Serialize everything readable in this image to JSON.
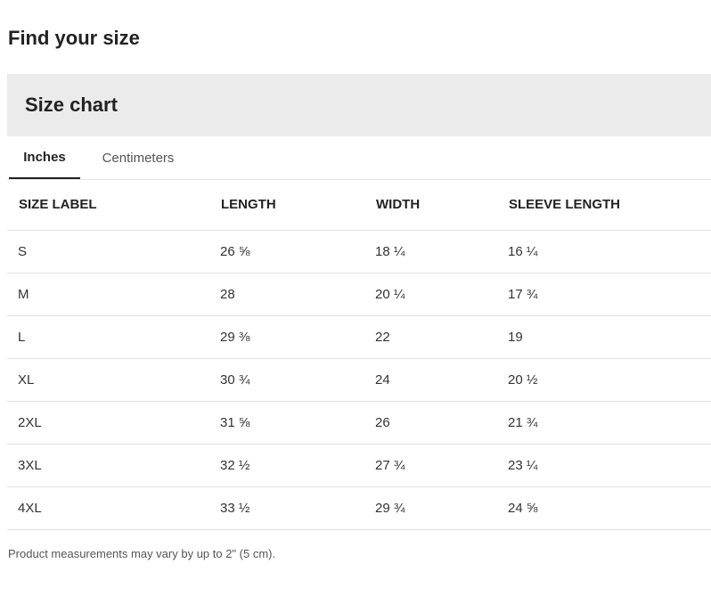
{
  "page": {
    "title": "Find your size",
    "footnote": "Product measurements may vary by up to 2\" (5 cm)."
  },
  "chart": {
    "title": "Size chart",
    "tabs": [
      {
        "label": "Inches",
        "active": true
      },
      {
        "label": "Centimeters",
        "active": false
      }
    ],
    "columns": [
      "SIZE LABEL",
      "LENGTH",
      "WIDTH",
      "SLEEVE LENGTH"
    ],
    "rows": [
      [
        "S",
        "26 ⅝",
        "18 ¼",
        "16 ¼"
      ],
      [
        "M",
        "28",
        "20 ¼",
        "17 ¾"
      ],
      [
        "L",
        "29 ⅜",
        "22",
        "19"
      ],
      [
        "XL",
        "30 ¾",
        "24",
        "20 ½"
      ],
      [
        "2XL",
        "31 ⅝",
        "26",
        "21 ¾"
      ],
      [
        "3XL",
        "32 ½",
        "27 ¾",
        "23 ¼"
      ],
      [
        "4XL",
        "33 ½",
        "29 ¾",
        "24 ⅝"
      ]
    ]
  }
}
